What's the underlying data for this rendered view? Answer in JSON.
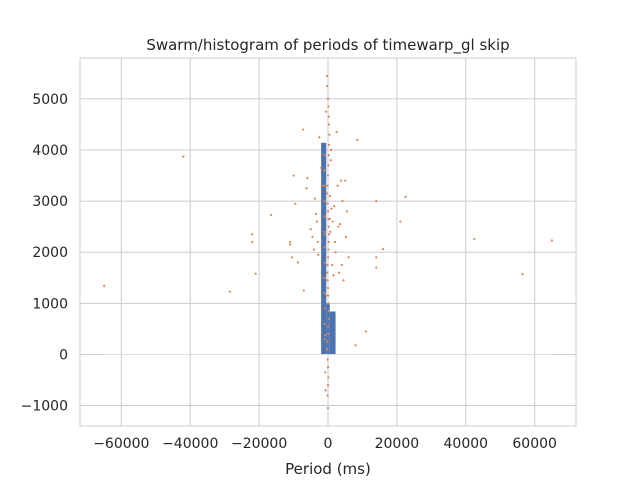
{
  "chart_data": {
    "type": "scatter",
    "title": "Swarm/histogram of periods of timewarp_gl skip",
    "xlabel": "Period (ms)",
    "ylabel": "",
    "xlim": [
      -72000,
      72000
    ],
    "ylim": [
      -1400,
      5800
    ],
    "xticks": [
      -60000,
      -40000,
      -20000,
      0,
      20000,
      40000,
      60000
    ],
    "xtick_labels": [
      "−60000",
      "−40000",
      "−20000",
      "0",
      "20000",
      "40000",
      "60000"
    ],
    "yticks": [
      -1000,
      0,
      1000,
      2000,
      3000,
      4000,
      5000
    ],
    "ytick_labels": [
      "−1000",
      "0",
      "1000",
      "2000",
      "3000",
      "4000",
      "5000"
    ],
    "grid": true,
    "colors": {
      "histogram": "#4c72b0",
      "swarm": "#dd8452",
      "grid": "#cccccc",
      "baseline": "#dddddd"
    },
    "series": [
      {
        "type": "histogram",
        "bins": [
          {
            "x0": -2000,
            "x1": -500,
            "count": 4140
          },
          {
            "x0": -500,
            "x1": 500,
            "count": 1000
          },
          {
            "x0": 500,
            "x1": 2200,
            "count": 840
          }
        ]
      },
      {
        "type": "scatter",
        "points": [
          [
            -65000,
            1340
          ],
          [
            -42000,
            3870
          ],
          [
            -28500,
            1230
          ],
          [
            -22000,
            2350
          ],
          [
            -22000,
            2200
          ],
          [
            -21000,
            1580
          ],
          [
            -16500,
            2730
          ],
          [
            -11000,
            2200
          ],
          [
            -11000,
            2150
          ],
          [
            -10500,
            1900
          ],
          [
            -10000,
            3500
          ],
          [
            -9500,
            2950
          ],
          [
            -8700,
            1800
          ],
          [
            -7200,
            4400
          ],
          [
            -7000,
            1250
          ],
          [
            -6200,
            3250
          ],
          [
            -6000,
            3450
          ],
          [
            -5000,
            2450
          ],
          [
            -4500,
            2300
          ],
          [
            -4000,
            2050
          ],
          [
            -3800,
            3050
          ],
          [
            -3500,
            2750
          ],
          [
            -3200,
            2600
          ],
          [
            -3000,
            2200
          ],
          [
            -2800,
            1950
          ],
          [
            -2500,
            4250
          ],
          [
            -2000,
            3650
          ],
          [
            -1500,
            3300
          ],
          [
            -1200,
            1500
          ],
          [
            -1000,
            2350
          ],
          [
            -900,
            380
          ],
          [
            -800,
            -350
          ],
          [
            -700,
            -700
          ],
          [
            -600,
            4750
          ],
          [
            -500,
            1150
          ],
          [
            -300,
            5450
          ],
          [
            -200,
            5250
          ],
          [
            0,
            5000
          ],
          [
            100,
            4850
          ],
          [
            200,
            4650
          ],
          [
            300,
            4500
          ],
          [
            400,
            4300
          ],
          [
            300,
            4100
          ],
          [
            200,
            3900
          ],
          [
            100,
            3700
          ],
          [
            0,
            3500
          ],
          [
            -100,
            3300
          ],
          [
            -200,
            3150
          ],
          [
            -100,
            2950
          ],
          [
            0,
            2800
          ],
          [
            100,
            2650
          ],
          [
            200,
            2500
          ],
          [
            300,
            2350
          ],
          [
            200,
            2200
          ],
          [
            100,
            2050
          ],
          [
            0,
            1900
          ],
          [
            -100,
            1750
          ],
          [
            -200,
            1600
          ],
          [
            -100,
            1450
          ],
          [
            0,
            1300
          ],
          [
            100,
            1150
          ],
          [
            200,
            1000
          ],
          [
            300,
            850
          ],
          [
            200,
            700
          ],
          [
            100,
            550
          ],
          [
            0,
            400
          ],
          [
            -100,
            250
          ],
          [
            -200,
            100
          ],
          [
            -100,
            -100
          ],
          [
            0,
            -250
          ],
          [
            100,
            -450
          ],
          [
            0,
            -600
          ],
          [
            -100,
            -800
          ],
          [
            0,
            -1050
          ],
          [
            500,
            2650
          ],
          [
            600,
            3100
          ],
          [
            700,
            2400
          ],
          [
            800,
            3800
          ],
          [
            900,
            4000
          ],
          [
            1000,
            2850
          ],
          [
            1200,
            1750
          ],
          [
            1400,
            2600
          ],
          [
            1600,
            1550
          ],
          [
            1800,
            2900
          ],
          [
            2000,
            2200
          ],
          [
            2200,
            2000
          ],
          [
            2500,
            4350
          ],
          [
            2800,
            3300
          ],
          [
            3000,
            2500
          ],
          [
            3200,
            1600
          ],
          [
            3500,
            2550
          ],
          [
            3800,
            3400
          ],
          [
            4000,
            1750
          ],
          [
            4200,
            3000
          ],
          [
            4500,
            1450
          ],
          [
            5000,
            3400
          ],
          [
            5200,
            2300
          ],
          [
            5500,
            2800
          ],
          [
            6000,
            1900
          ],
          [
            8500,
            4200
          ],
          [
            8000,
            180
          ],
          [
            11000,
            450
          ],
          [
            14000,
            3000
          ],
          [
            14000,
            1900
          ],
          [
            14000,
            1700
          ],
          [
            16000,
            2060
          ],
          [
            21000,
            2600
          ],
          [
            22500,
            3080
          ],
          [
            42500,
            2260
          ],
          [
            56500,
            1570
          ],
          [
            65000,
            2230
          ]
        ],
        "histogram_points": [
          [
            -1000,
            300
          ],
          [
            -1000,
            600
          ],
          [
            -1000,
            900
          ],
          [
            -1000,
            1200
          ],
          [
            -1000,
            1500
          ],
          [
            -1000,
            1800
          ],
          [
            -1000,
            2100
          ],
          [
            -1000,
            2400
          ],
          [
            -1000,
            2700
          ],
          [
            -1000,
            3000
          ],
          [
            -1000,
            3300
          ],
          [
            -1000,
            3600
          ],
          [
            -1000,
            3900
          ]
        ]
      }
    ],
    "baseline": {
      "x0": -65000,
      "x1": 65000,
      "y": 0
    }
  }
}
